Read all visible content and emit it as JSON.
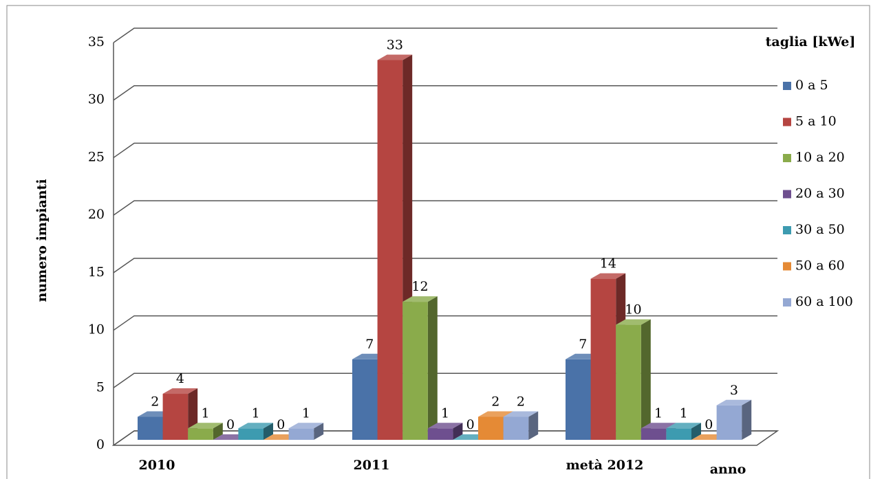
{
  "chart_data": {
    "type": "bar3d",
    "y_label": "numero impianti",
    "x_label": "anno",
    "legend_title": "taglia [kWe]",
    "categories": [
      "2010",
      "2011",
      "metà 2012"
    ],
    "series": [
      {
        "name": "0 a 5",
        "color": "#4a72a8",
        "values": [
          2,
          7,
          7
        ]
      },
      {
        "name": "5 a 10",
        "color": "#b54541",
        "values": [
          4,
          33,
          14
        ]
      },
      {
        "name": "10 a 20",
        "color": "#8aab4b",
        "values": [
          1,
          12,
          10
        ]
      },
      {
        "name": "20 a 30",
        "color": "#6e4f8f",
        "values": [
          0,
          1,
          1
        ]
      },
      {
        "name": "30 a 50",
        "color": "#3d9bb0",
        "values": [
          1,
          0,
          1
        ]
      },
      {
        "name": "50 a 60",
        "color": "#e58a35",
        "values": [
          0,
          2,
          0
        ]
      },
      {
        "name": "60 a 100",
        "color": "#94a8d3",
        "values": [
          1,
          2,
          3
        ]
      }
    ],
    "ylim": [
      0,
      35
    ],
    "yticks": [
      0,
      5,
      10,
      15,
      20,
      25,
      30,
      35
    ],
    "grid": true,
    "legend": "right",
    "data_labels": true
  }
}
